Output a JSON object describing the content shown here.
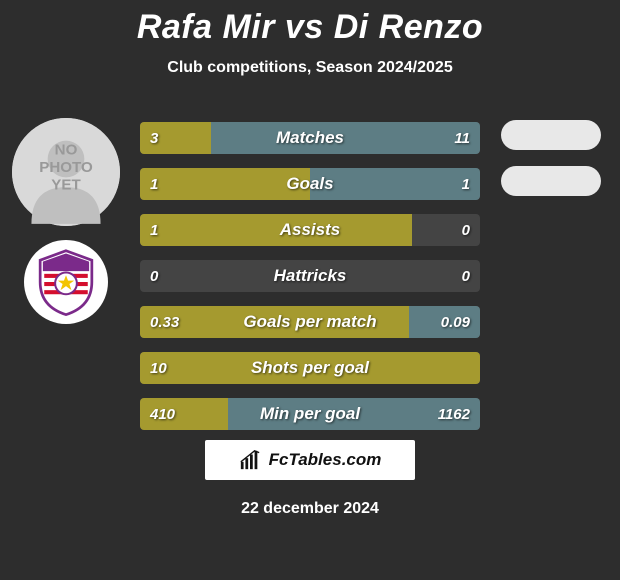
{
  "background_color": "#2d2d2d",
  "title_color": "#ffffff",
  "left_color": "#a59a2f",
  "right_color": "#5d7d84",
  "track_color": "#444444",
  "title": {
    "player1": "Rafa Mir",
    "vs": "vs",
    "player2": "Di Renzo"
  },
  "subtitle": "Club competitions, Season 2024/2025",
  "avatar_text": "NO\nPHOTO\nYET",
  "stats": [
    {
      "label": "Matches",
      "left_val": "3",
      "right_val": "11",
      "left_pct": 21,
      "right_pct": 79,
      "show_right_bar": true
    },
    {
      "label": "Goals",
      "left_val": "1",
      "right_val": "1",
      "left_pct": 50,
      "right_pct": 50,
      "show_right_bar": true
    },
    {
      "label": "Assists",
      "left_val": "1",
      "right_val": "0",
      "left_pct": 80,
      "right_pct": 0,
      "show_right_bar": false
    },
    {
      "label": "Hattricks",
      "left_val": "0",
      "right_val": "0",
      "left_pct": 0,
      "right_pct": 0,
      "show_right_bar": false
    },
    {
      "label": "Goals per match",
      "left_val": "0.33",
      "right_val": "0.09",
      "left_pct": 79,
      "right_pct": 21,
      "show_right_bar": true
    },
    {
      "label": "Shots per goal",
      "left_val": "10",
      "right_val": "",
      "left_pct": 100,
      "right_pct": 0,
      "show_right_bar": false
    },
    {
      "label": "Min per goal",
      "left_val": "410",
      "right_val": "1162",
      "left_pct": 26,
      "right_pct": 74,
      "show_right_bar": true
    }
  ],
  "branding": "FcTables.com",
  "date": "22 december 2024",
  "opponent_pills": 2,
  "club_badge_colors": {
    "top": "#7b2a8a",
    "mid": "#ffffff",
    "stripe": "#d40e2e",
    "accent": "#f3c400"
  }
}
